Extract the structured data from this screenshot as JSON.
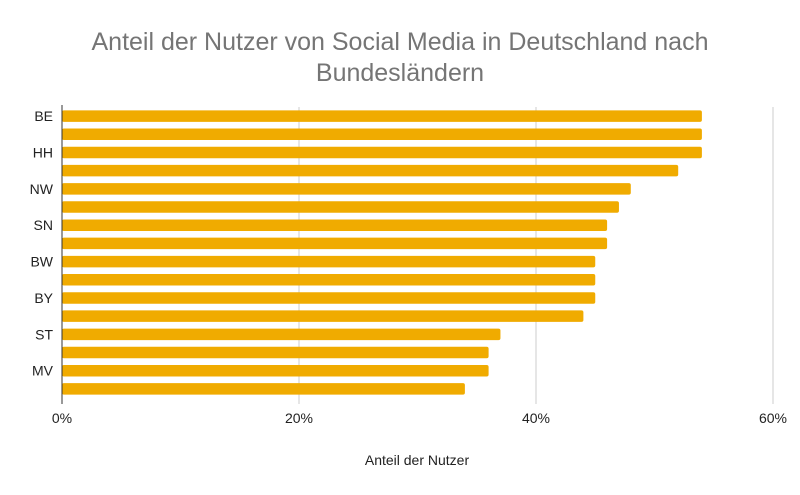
{
  "chart_data": {
    "type": "bar",
    "orientation": "horizontal",
    "title_line1": "Anteil der Nutzer von Social Media in Deutschland nach",
    "title_line2": "Bundesländern",
    "xlabel": "Anteil der Nutzer",
    "ylabel": "",
    "categories": [
      "BE",
      "",
      "HH",
      "",
      "NW",
      "",
      "SN",
      "",
      "BW",
      "",
      "BY",
      "",
      "ST",
      "",
      "MV",
      ""
    ],
    "values": [
      54,
      54,
      54,
      52,
      48,
      47,
      46,
      46,
      45,
      45,
      45,
      44,
      37,
      36,
      36,
      34
    ],
    "value_unit": "%",
    "xlim": [
      0,
      60
    ],
    "xticks": [
      "0%",
      "20%",
      "40%",
      "60%"
    ],
    "xtick_values": [
      0,
      20,
      40,
      60
    ],
    "grid": true,
    "legend": "none",
    "bar_color": "#f0ab00"
  }
}
